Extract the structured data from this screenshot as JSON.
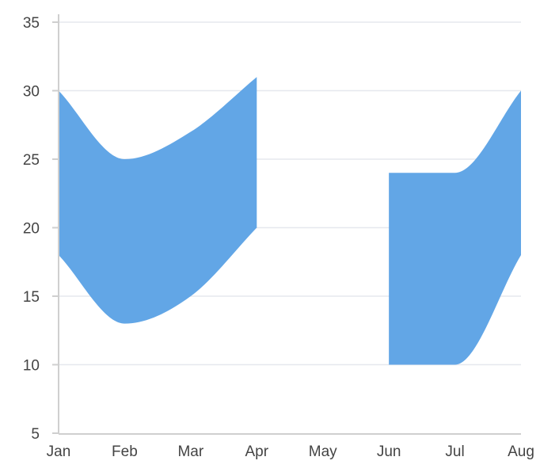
{
  "chart_data": {
    "type": "area",
    "subtype": "spline-range-area",
    "categories": [
      "Jan",
      "Feb",
      "Mar",
      "Apr",
      "May",
      "Jun",
      "Jul",
      "Aug"
    ],
    "series": [
      {
        "high": [
          30,
          25,
          27,
          31,
          null,
          24,
          24,
          30
        ],
        "low": [
          18,
          13,
          15,
          20,
          null,
          10,
          10,
          18
        ]
      }
    ],
    "ylim": [
      5,
      35
    ],
    "yticks": [
      5,
      10,
      15,
      20,
      25,
      30,
      35
    ],
    "grid": true,
    "legend": "none",
    "colors": {
      "fill": "#62a6e6",
      "grid": "#e6e8ee",
      "axis": "#cfcfcf",
      "text": "#444444"
    }
  }
}
